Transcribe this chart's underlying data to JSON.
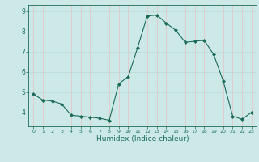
{
  "x": [
    0,
    1,
    2,
    3,
    4,
    5,
    6,
    7,
    8,
    9,
    10,
    11,
    12,
    13,
    14,
    15,
    16,
    17,
    18,
    19,
    20,
    21,
    22,
    23
  ],
  "y": [
    4.9,
    4.6,
    4.55,
    4.4,
    3.85,
    3.8,
    3.75,
    3.7,
    3.6,
    5.4,
    5.75,
    7.2,
    8.75,
    8.8,
    8.4,
    8.05,
    7.45,
    7.5,
    7.55,
    6.85,
    5.55,
    3.8,
    3.65,
    4.0
  ],
  "line_color": "#1a6b5a",
  "marker": "D",
  "marker_size": 2,
  "bg_color": "#cce9e7",
  "grid_color_v": "#e8c0c0",
  "grid_color_h": "#b8d8d6",
  "xlabel": "Humidex (Indice chaleur)",
  "xlabel_color": "#1a6b5a",
  "tick_color": "#1a6b5a",
  "ylim": [
    3.3,
    9.3
  ],
  "yticks": [
    4,
    5,
    6,
    7,
    8,
    9
  ],
  "xticks": [
    0,
    1,
    2,
    3,
    4,
    5,
    6,
    7,
    8,
    9,
    10,
    11,
    12,
    13,
    14,
    15,
    16,
    17,
    18,
    19,
    20,
    21,
    22,
    23
  ]
}
